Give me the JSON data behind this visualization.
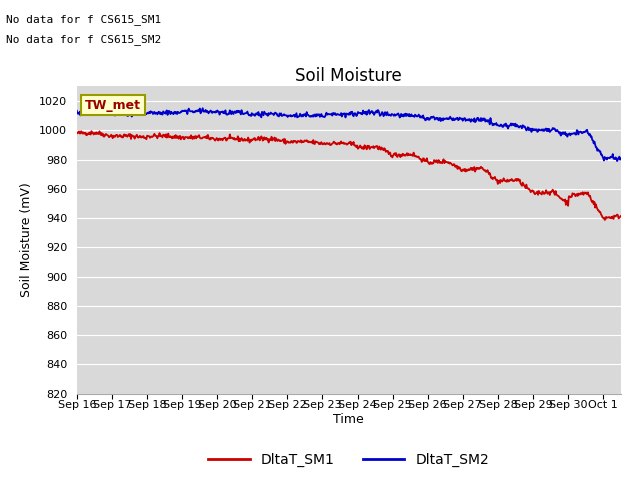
{
  "title": "Soil Moisture",
  "ylabel": "Soil Moisture (mV)",
  "xlabel": "Time",
  "no_data_text1": "No data for f CS615_SM1",
  "no_data_text2": "No data for f CS615_SM2",
  "tw_met_label": "TW_met",
  "legend_labels": [
    "DltaT_SM1",
    "DltaT_SM2"
  ],
  "line_colors": [
    "#cc0000",
    "#0000cc"
  ],
  "ylim": [
    820,
    1030
  ],
  "bg_color": "#d9d9d9",
  "fig_bg_color": "#ffffff",
  "title_fontsize": 12,
  "axis_fontsize": 9,
  "tick_fontsize": 8,
  "annotation_fontsize": 8,
  "tw_met_bg": "#ffffcc",
  "tw_met_text_color": "#990000",
  "tw_met_border_color": "#999900",
  "grid_color": "#ffffff",
  "legend_fontsize": 10
}
